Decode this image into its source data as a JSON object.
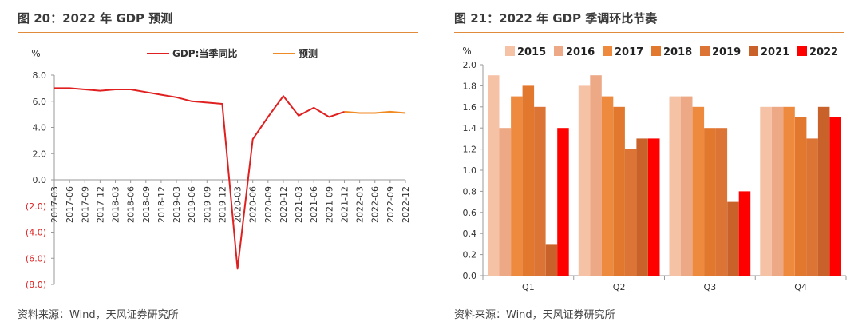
{
  "left": {
    "title": "图 20：2022 年 GDP 预测",
    "source": "资料来源：Wind，天风证券研究所",
    "chart_data": {
      "type": "line",
      "ylabel": "%",
      "ylim": [
        -8,
        8
      ],
      "yticks": [
        "8.0",
        "6.0",
        "4.0",
        "2.0",
        "0.0",
        "(2.0)",
        "(4.0)",
        "(6.0)",
        "(8.0)"
      ],
      "ytick_values": [
        8,
        6,
        4,
        2,
        0,
        -2,
        -4,
        -6,
        -8
      ],
      "categories": [
        "2017-03",
        "2017-06",
        "2017-09",
        "2017-12",
        "2018-03",
        "2018-06",
        "2018-09",
        "2018-12",
        "2019-03",
        "2019-06",
        "2019-09",
        "2019-12",
        "2020-03",
        "2020-06",
        "2020-09",
        "2020-12",
        "2021-03",
        "2021-06",
        "2021-09",
        "2021-12",
        "2022-03",
        "2022-06",
        "2022-09",
        "2022-12"
      ],
      "series": [
        {
          "name": "GDP:当季同比",
          "color": "#e02020",
          "values": [
            7.0,
            7.0,
            6.9,
            6.8,
            6.9,
            6.9,
            6.7,
            6.5,
            6.3,
            6.0,
            5.9,
            5.8,
            -6.8,
            3.1,
            4.8,
            6.4,
            4.9,
            5.5,
            4.8,
            5.2,
            null,
            null,
            null,
            null
          ]
        },
        {
          "name": "预测",
          "color": "#f08a24",
          "values": [
            null,
            null,
            null,
            null,
            null,
            null,
            null,
            null,
            null,
            null,
            null,
            null,
            null,
            null,
            null,
            null,
            null,
            null,
            null,
            5.2,
            5.1,
            5.1,
            5.2,
            5.1
          ]
        }
      ],
      "legend_position": "top-center",
      "grid": false
    }
  },
  "right": {
    "title": "图 21：2022 年 GDP 季调环比节奏",
    "source": "资料来源：Wind，天风证券研究所",
    "chart_data": {
      "type": "bar",
      "ylabel": "%",
      "ylim": [
        0,
        2.0
      ],
      "yticks": [
        "0.0",
        "0.2",
        "0.4",
        "0.6",
        "0.8",
        "1.0",
        "1.2",
        "1.4",
        "1.6",
        "1.8",
        "2.0"
      ],
      "ytick_values": [
        0,
        0.2,
        0.4,
        0.6,
        0.8,
        1.0,
        1.2,
        1.4,
        1.6,
        1.8,
        2.0
      ],
      "categories": [
        "Q1",
        "Q2",
        "Q3",
        "Q4"
      ],
      "series": [
        {
          "name": "2015",
          "color": "#f6c2a6",
          "values": [
            1.9,
            1.8,
            1.7,
            1.6
          ]
        },
        {
          "name": "2016",
          "color": "#eda885",
          "values": [
            1.4,
            1.9,
            1.7,
            1.6
          ]
        },
        {
          "name": "2017",
          "color": "#ee8a3e",
          "values": [
            1.7,
            1.7,
            1.6,
            1.6
          ]
        },
        {
          "name": "2018",
          "color": "#e2782e",
          "values": [
            1.8,
            1.6,
            1.4,
            1.5
          ]
        },
        {
          "name": "2019",
          "color": "#dc7436",
          "values": [
            1.6,
            1.2,
            1.4,
            1.3
          ]
        },
        {
          "name": "2021",
          "color": "#c8622a",
          "values": [
            0.3,
            1.3,
            0.7,
            1.6
          ]
        },
        {
          "name": "2022",
          "color": "#ff0000",
          "values": [
            1.4,
            1.3,
            0.8,
            1.5
          ]
        }
      ],
      "legend_position": "top",
      "grid": false
    }
  }
}
